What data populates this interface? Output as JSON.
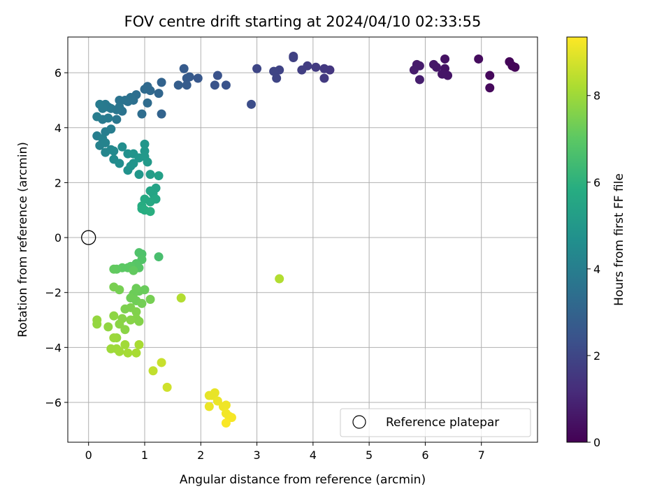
{
  "chart_data": {
    "type": "scatter",
    "title": "FOV centre drift starting at 2024/04/10 02:33:55",
    "xlabel": "Angular distance from reference (arcmin)",
    "ylabel": "Rotation from reference (arcmin)",
    "xlim": [
      -0.37,
      8.0
    ],
    "ylim": [
      -7.45,
      7.3
    ],
    "xticks": [
      0,
      1,
      2,
      3,
      4,
      5,
      6,
      7
    ],
    "xtick_labels": [
      "0",
      "1",
      "2",
      "3",
      "4",
      "5",
      "6",
      "7"
    ],
    "yticks": [
      -6,
      -4,
      -2,
      0,
      2,
      4,
      6
    ],
    "ytick_labels": [
      "−6",
      "−4",
      "−2",
      "0",
      "2",
      "4",
      "6"
    ],
    "grid": true,
    "colormap": "viridis",
    "colorbar": {
      "label": "Hours from first FF file",
      "min": 0,
      "max": 9.35,
      "ticks": [
        0,
        2,
        4,
        6,
        8
      ],
      "tick_labels": [
        "0",
        "2",
        "4",
        "6",
        "8"
      ]
    },
    "legend": {
      "position": "lower-right",
      "entries": [
        {
          "label": "Reference platepar",
          "marker": "open-circle",
          "color": "#000000"
        }
      ]
    },
    "reference_point": {
      "x": 0,
      "y": 0
    },
    "series": [
      {
        "marker": "filled-circle",
        "points": [
          [
            7.55,
            6.25,
            0.1
          ],
          [
            7.6,
            6.2,
            0.1
          ],
          [
            7.5,
            6.4,
            0.12
          ],
          [
            7.15,
            5.9,
            0.2
          ],
          [
            7.15,
            5.45,
            0.22
          ],
          [
            6.95,
            6.5,
            0.3
          ],
          [
            6.35,
            6.5,
            0.45
          ],
          [
            6.35,
            6.15,
            0.5
          ],
          [
            6.4,
            5.9,
            0.55
          ],
          [
            6.3,
            5.95,
            0.55
          ],
          [
            6.2,
            6.2,
            0.6
          ],
          [
            6.15,
            6.3,
            0.62
          ],
          [
            5.9,
            6.25,
            0.7
          ],
          [
            5.85,
            6.3,
            0.72
          ],
          [
            5.8,
            6.1,
            0.75
          ],
          [
            5.9,
            5.75,
            0.8
          ],
          [
            4.3,
            6.1,
            1.5
          ],
          [
            4.2,
            6.15,
            1.55
          ],
          [
            4.2,
            5.8,
            1.6
          ],
          [
            4.05,
            6.2,
            1.65
          ],
          [
            3.9,
            6.25,
            1.7
          ],
          [
            3.8,
            6.1,
            1.75
          ],
          [
            3.65,
            6.6,
            1.8
          ],
          [
            3.65,
            6.55,
            1.82
          ],
          [
            3.4,
            6.1,
            1.9
          ],
          [
            3.3,
            6.05,
            1.95
          ],
          [
            3.35,
            5.8,
            1.95
          ],
          [
            3.0,
            6.15,
            2.0
          ],
          [
            2.9,
            4.85,
            2.2
          ],
          [
            2.45,
            5.55,
            2.4
          ],
          [
            2.3,
            5.9,
            2.4
          ],
          [
            2.25,
            5.55,
            2.45
          ],
          [
            1.95,
            5.8,
            2.6
          ],
          [
            1.8,
            5.85,
            2.65
          ],
          [
            1.75,
            5.8,
            2.7
          ],
          [
            1.7,
            6.15,
            2.7
          ],
          [
            1.75,
            5.55,
            2.75
          ],
          [
            1.6,
            5.55,
            2.8
          ],
          [
            1.3,
            4.5,
            3.0
          ],
          [
            1.3,
            5.65,
            3.0
          ],
          [
            1.25,
            5.25,
            3.1
          ],
          [
            1.1,
            5.35,
            3.2
          ],
          [
            1.05,
            5.5,
            3.2
          ],
          [
            1.0,
            5.4,
            3.25
          ],
          [
            1.05,
            4.9,
            3.3
          ],
          [
            0.95,
            4.5,
            3.35
          ],
          [
            0.85,
            5.2,
            3.4
          ],
          [
            0.8,
            5.0,
            3.45
          ],
          [
            0.75,
            5.1,
            3.5
          ],
          [
            0.7,
            4.95,
            3.5
          ],
          [
            0.65,
            5.0,
            3.55
          ],
          [
            0.6,
            4.6,
            3.6
          ],
          [
            0.55,
            5.0,
            3.6
          ],
          [
            0.55,
            4.75,
            3.65
          ],
          [
            0.5,
            4.65,
            3.7
          ],
          [
            0.5,
            4.3,
            3.7
          ],
          [
            0.4,
            4.7,
            3.75
          ],
          [
            0.35,
            4.75,
            3.8
          ],
          [
            0.3,
            4.85,
            3.8
          ],
          [
            0.25,
            4.7,
            3.85
          ],
          [
            0.25,
            4.3,
            3.85
          ],
          [
            0.2,
            4.85,
            3.9
          ],
          [
            0.15,
            4.4,
            3.95
          ],
          [
            0.15,
            3.7,
            4.0
          ],
          [
            0.35,
            4.35,
            3.9
          ],
          [
            0.4,
            3.95,
            3.95
          ],
          [
            0.3,
            3.85,
            4.0
          ],
          [
            0.25,
            3.6,
            4.1
          ],
          [
            0.2,
            3.35,
            4.15
          ],
          [
            0.3,
            3.45,
            4.2
          ],
          [
            0.3,
            3.1,
            4.3
          ],
          [
            0.4,
            3.2,
            4.35
          ],
          [
            0.45,
            3.15,
            4.4
          ],
          [
            0.45,
            2.85,
            4.5
          ],
          [
            0.55,
            2.7,
            4.55
          ],
          [
            0.6,
            3.3,
            4.6
          ],
          [
            0.7,
            3.05,
            4.7
          ],
          [
            0.7,
            2.45,
            4.75
          ],
          [
            0.75,
            2.6,
            4.8
          ],
          [
            0.8,
            2.7,
            4.85
          ],
          [
            0.8,
            3.05,
            4.85
          ],
          [
            0.9,
            2.9,
            4.9
          ],
          [
            0.9,
            2.3,
            4.95
          ],
          [
            1.0,
            3.4,
            4.9
          ],
          [
            1.0,
            3.15,
            4.95
          ],
          [
            1.0,
            2.95,
            5.0
          ],
          [
            1.05,
            2.75,
            5.05
          ],
          [
            1.1,
            2.3,
            5.2
          ],
          [
            1.25,
            2.25,
            5.3
          ],
          [
            1.2,
            1.8,
            5.4
          ],
          [
            1.15,
            1.6,
            5.5
          ],
          [
            1.1,
            1.7,
            5.5
          ],
          [
            1.2,
            1.4,
            5.6
          ],
          [
            1.1,
            1.3,
            5.65
          ],
          [
            1.0,
            1.4,
            5.7
          ],
          [
            0.95,
            1.15,
            5.8
          ],
          [
            1.0,
            1.0,
            5.85
          ],
          [
            0.95,
            1.05,
            5.85
          ],
          [
            1.1,
            0.95,
            5.9
          ],
          [
            1.25,
            -0.7,
            6.6
          ],
          [
            0.95,
            -0.6,
            6.7
          ],
          [
            0.9,
            -0.55,
            6.75
          ],
          [
            0.95,
            -0.8,
            6.8
          ],
          [
            0.85,
            -0.95,
            6.85
          ],
          [
            0.9,
            -1.1,
            6.9
          ],
          [
            0.85,
            -1.0,
            6.9
          ],
          [
            0.75,
            -1.05,
            6.95
          ],
          [
            0.7,
            -1.1,
            7.0
          ],
          [
            0.6,
            -1.1,
            7.0
          ],
          [
            0.5,
            -1.15,
            7.05
          ],
          [
            0.45,
            -1.15,
            7.1
          ],
          [
            0.8,
            -1.2,
            7.1
          ],
          [
            1.0,
            -1.9,
            7.2
          ],
          [
            0.9,
            -1.95,
            7.2
          ],
          [
            0.85,
            -1.85,
            7.25
          ],
          [
            0.8,
            -2.05,
            7.25
          ],
          [
            0.75,
            -2.2,
            7.3
          ],
          [
            0.85,
            -2.3,
            7.3
          ],
          [
            0.95,
            -2.4,
            7.35
          ],
          [
            1.1,
            -2.25,
            7.4
          ],
          [
            0.55,
            -1.9,
            7.4
          ],
          [
            0.45,
            -1.8,
            7.45
          ],
          [
            0.65,
            -2.6,
            7.5
          ],
          [
            0.75,
            -2.55,
            7.5
          ],
          [
            0.85,
            -2.7,
            7.55
          ],
          [
            0.85,
            -2.95,
            7.6
          ],
          [
            0.9,
            -3.05,
            7.6
          ],
          [
            0.75,
            -3.0,
            7.65
          ],
          [
            0.6,
            -2.95,
            7.65
          ],
          [
            0.55,
            -3.15,
            7.7
          ],
          [
            0.65,
            -3.35,
            7.7
          ],
          [
            0.45,
            -2.85,
            7.75
          ],
          [
            0.35,
            -3.25,
            7.8
          ],
          [
            0.15,
            -3.0,
            7.85
          ],
          [
            0.15,
            -3.15,
            7.85
          ],
          [
            0.5,
            -3.65,
            7.9
          ],
          [
            0.45,
            -3.65,
            7.95
          ],
          [
            0.4,
            -4.05,
            8.0
          ],
          [
            0.5,
            -4.05,
            8.0
          ],
          [
            0.55,
            -4.15,
            8.05
          ],
          [
            0.65,
            -3.9,
            8.05
          ],
          [
            0.7,
            -4.2,
            8.1
          ],
          [
            0.85,
            -4.2,
            8.15
          ],
          [
            0.9,
            -3.9,
            8.15
          ],
          [
            1.65,
            -2.2,
            8.3
          ],
          [
            3.4,
            -1.5,
            8.3
          ],
          [
            1.15,
            -4.85,
            8.5
          ],
          [
            1.3,
            -4.55,
            8.6
          ],
          [
            1.4,
            -5.45,
            8.7
          ],
          [
            2.15,
            -5.75,
            9.0
          ],
          [
            2.25,
            -5.65,
            9.05
          ],
          [
            2.2,
            -5.75,
            9.05
          ],
          [
            2.15,
            -6.15,
            9.1
          ],
          [
            2.3,
            -5.95,
            9.1
          ],
          [
            2.4,
            -6.15,
            9.15
          ],
          [
            2.45,
            -6.1,
            9.15
          ],
          [
            2.45,
            -6.4,
            9.2
          ],
          [
            2.5,
            -6.5,
            9.2
          ],
          [
            2.55,
            -6.55,
            9.25
          ],
          [
            2.45,
            -6.75,
            9.3
          ]
        ]
      }
    ]
  }
}
